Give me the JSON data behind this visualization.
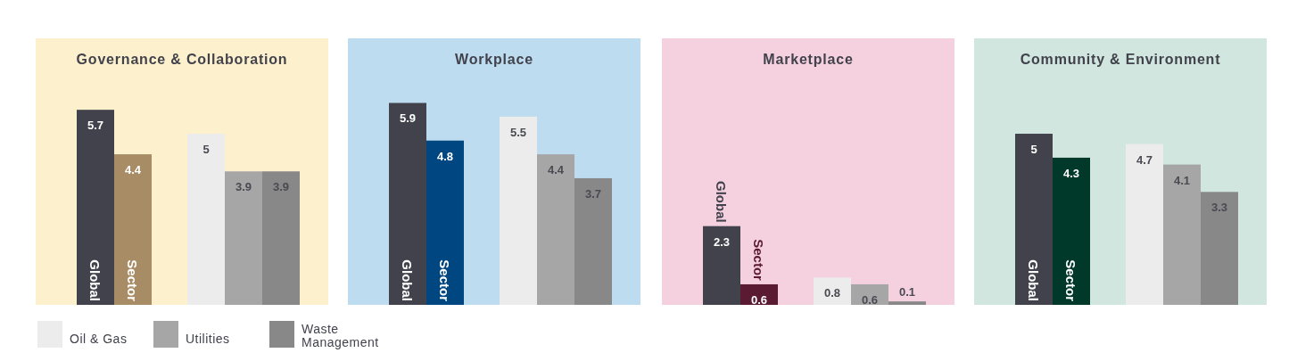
{
  "chart_data": [
    {
      "type": "bar",
      "title": "Governance & Collaboration",
      "categories": [
        null
      ],
      "data_labels": true,
      "legend": "bottom",
      "series": [
        {
          "name": "Global",
          "color": "#41424c",
          "values": [
            5.7
          ]
        },
        {
          "name": "Sector",
          "color": "#a88c66",
          "values": [
            4.4
          ]
        },
        {
          "name": "Oil & Gas",
          "color": "#ececec",
          "values": [
            5
          ]
        },
        {
          "name": "Utilities",
          "color": "#a6a6a6",
          "values": [
            3.9
          ]
        },
        {
          "name": "Waste Management",
          "color": "#888888",
          "values": [
            3.9
          ]
        }
      ]
    },
    {
      "type": "bar",
      "title": "Workplace",
      "categories": [
        null
      ],
      "data_labels": true,
      "series": [
        {
          "name": "Global",
          "color": "#41424c",
          "values": [
            5.9
          ]
        },
        {
          "name": "Sector",
          "color": "#004680",
          "values": [
            4.8
          ]
        },
        {
          "color": "#ececec",
          "values": [
            5.5
          ]
        },
        {
          "color": "#a6a6a6",
          "values": [
            4.4
          ]
        },
        {
          "color": "#888888",
          "values": [
            3.7
          ]
        }
      ]
    },
    {
      "type": "bar",
      "title": "Marketplace",
      "categories": [
        null
      ],
      "data_labels": true,
      "series": [
        {
          "name": "Global",
          "color": "#41424c",
          "values": [
            2.3
          ]
        },
        {
          "name": "Sector",
          "color": "#5a1a32",
          "values": [
            0.6
          ]
        },
        {
          "color": "#ececec",
          "values": [
            0.8
          ]
        },
        {
          "color": "#a6a6a6",
          "values": [
            0.6
          ]
        },
        {
          "color": "#888888",
          "values": [
            0.1
          ]
        }
      ]
    },
    {
      "type": "bar",
      "title": "Community & Environment",
      "categories": [
        null
      ],
      "data_labels": true,
      "series": [
        {
          "name": "Global",
          "color": "#41424c",
          "values": [
            5
          ]
        },
        {
          "name": "Sector",
          "color": "#00382a",
          "values": [
            4.3
          ]
        },
        {
          "color": "#ececec",
          "values": [
            4.7
          ]
        },
        {
          "color": "#a6a6a6",
          "values": [
            4.1
          ]
        },
        {
          "color": "#888888",
          "values": [
            3.3
          ]
        }
      ]
    }
  ]
}
